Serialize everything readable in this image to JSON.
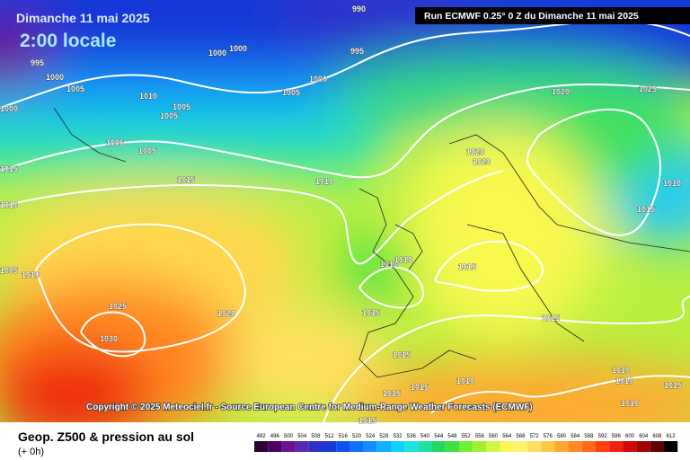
{
  "header": {
    "date": "Dimanche 11 mai 2025",
    "time": "2:00 locale",
    "run": "Run ECMWF 0.25° 0 Z du Dimanche 11 mai 2025"
  },
  "isobar_labels": [
    "990",
    "1000",
    "1000",
    "995",
    "995",
    "1000",
    "1005",
    "1000",
    "1000",
    "1010",
    "1005",
    "1005",
    "1005",
    "1020",
    "1025",
    "1005",
    "1005",
    "1020",
    "1020",
    "1015",
    "1015",
    "1010",
    "1010",
    "1010",
    "1015",
    "1010",
    "1010",
    "1015",
    "1005",
    "1010",
    "1025",
    "1020",
    "1015",
    "1015",
    "1030",
    "1015",
    "1010",
    "1010",
    "1010",
    "1015",
    "1015",
    "1015",
    "1010",
    "1015"
  ],
  "copyright": "Copyright © 2025 Meteociel.fr - Source European Centre for Medium-Range Weather Forecasts (ECMWF)",
  "footer": {
    "title": "Geop. Z500 & pression au sol",
    "step": "(+ 0h)"
  },
  "scale": [
    {
      "label": 492,
      "color": "#2a0036"
    },
    {
      "label": 496,
      "color": "#4a0062"
    },
    {
      "label": 500,
      "color": "#6a1090"
    },
    {
      "label": 504,
      "color": "#5a2ab0"
    },
    {
      "label": 508,
      "color": "#3030c8"
    },
    {
      "label": 512,
      "color": "#1838d8"
    },
    {
      "label": 516,
      "color": "#1050f0"
    },
    {
      "label": 520,
      "color": "#1070ff"
    },
    {
      "label": 524,
      "color": "#1090ff"
    },
    {
      "label": 528,
      "color": "#10b0ff"
    },
    {
      "label": 532,
      "color": "#10d0ff"
    },
    {
      "label": 536,
      "color": "#20e0e0"
    },
    {
      "label": 540,
      "color": "#20e0a0"
    },
    {
      "label": 544,
      "color": "#20d860"
    },
    {
      "label": 548,
      "color": "#40e040"
    },
    {
      "label": 552,
      "color": "#70f030"
    },
    {
      "label": 556,
      "color": "#a0f030"
    },
    {
      "label": 560,
      "color": "#d0f840"
    },
    {
      "label": 564,
      "color": "#f8f850"
    },
    {
      "label": 568,
      "color": "#fff070"
    },
    {
      "label": 572,
      "color": "#ffe060"
    },
    {
      "label": 576,
      "color": "#ffc840"
    },
    {
      "label": 580,
      "color": "#ffa830"
    },
    {
      "label": 584,
      "color": "#ff8820"
    },
    {
      "label": 588,
      "color": "#ff6818"
    },
    {
      "label": 592,
      "color": "#ff4010"
    },
    {
      "label": 596,
      "color": "#f02010"
    },
    {
      "label": 600,
      "color": "#d00808"
    },
    {
      "label": 604,
      "color": "#a00000"
    },
    {
      "label": 608,
      "color": "#600000"
    },
    {
      "label": 612,
      "color": "#000000"
    }
  ]
}
